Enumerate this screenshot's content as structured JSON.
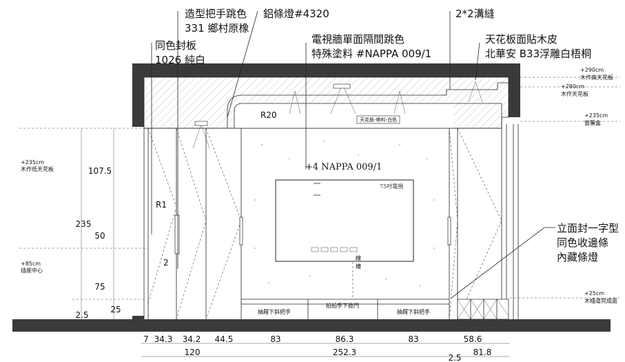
{
  "callouts": {
    "handle_line1": "造型把手跳色",
    "handle_line2": "331 鄉村原橡",
    "led_strip": "鋁條燈#4320",
    "same_color_line1": "同色封板",
    "same_color_line2": "1026 純白",
    "tv_wall_line1": "電視牆單面隔間跳色",
    "tv_wall_line2": "特殊塗料 #NAPPA 009/1",
    "groove": "2*2溝縫",
    "ceiling_line1": "天花板面貼木皮",
    "ceiling_line2": "北華安 B33浮雕白梧桐",
    "edge_line1": "立面封一字型",
    "edge_line2": "同色收邊條",
    "edge_line3": "內藏條燈"
  },
  "labels": {
    "r20": "R20",
    "r1": "R1",
    "two": "2",
    "nappa": "+4  NAPPA   009/1",
    "tv": "75吋電視",
    "ceiling_tag": "天花板-帶料-白色",
    "line_tag1": "線",
    "line_tag2": "槽",
    "drawer_left": "抽屜下斜把手",
    "drawer_mid": "拍拍手下掀門",
    "drawer_right": "抽屜下斜把手"
  },
  "right_levels": [
    {
      "main": "+290cm",
      "sub": "木作高天花板"
    },
    {
      "main": "+280cm",
      "sub": "木作天花板"
    },
    {
      "main": "+235cm",
      "sub": "窗簾盒"
    },
    {
      "main": "+25cm",
      "sub": "木棧道完成面"
    }
  ],
  "left_levels": [
    {
      "main": "+235cm",
      "sub": "木作低天花板"
    },
    {
      "main": "+85cm",
      "sub": "插座中心"
    }
  ],
  "vertical_dims": {
    "d107": "107.5",
    "d235": "235",
    "d50": "50",
    "d75": "75",
    "d25": "25",
    "d25b": "2.5"
  },
  "bottom_dims_row1": [
    "7",
    "34.3",
    "34.2",
    "44.5",
    "83",
    "86.3",
    "83",
    "58.6"
  ],
  "bottom_dims_row2": [
    "120",
    "252.3",
    "81.8"
  ],
  "bottom_dim_extra": "2.5"
}
